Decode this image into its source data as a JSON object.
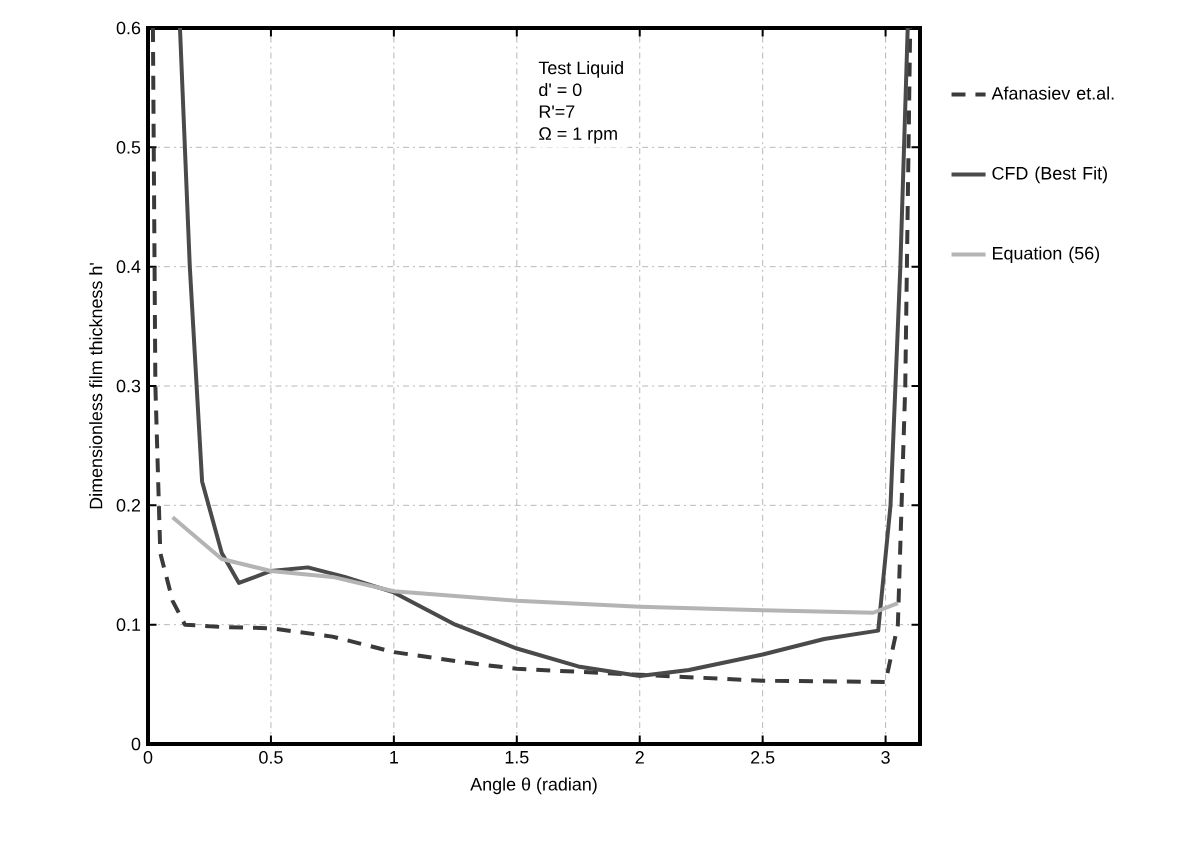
{
  "chart_data": {
    "type": "line",
    "xlabel": "Angle  θ (radian)",
    "ylabel": "Dimensionless film thickness h'",
    "annotations": [
      "Test Liquid",
      "d' = 0",
      "R'=7",
      "Ω = 1 rpm"
    ],
    "xlim": [
      0,
      3.14
    ],
    "ylim": [
      0,
      0.6
    ],
    "xticks": [
      0,
      0.5,
      1,
      1.5,
      2,
      2.5,
      3
    ],
    "yticks": [
      0,
      0.1,
      0.2,
      0.3,
      0.4,
      0.5,
      0.6
    ],
    "grid": true,
    "legend": "right",
    "series": [
      {
        "name": "Afanasiev et.al.",
        "color": "#3a3a3a",
        "line_style": "dashed",
        "x": [
          0.02,
          0.03,
          0.05,
          0.1,
          0.15,
          0.3,
          0.5,
          0.75,
          1.0,
          1.3,
          1.5,
          2.0,
          2.5,
          3.0,
          3.05,
          3.08,
          3.1
        ],
        "values": [
          0.6,
          0.3,
          0.16,
          0.12,
          0.1,
          0.098,
          0.097,
          0.09,
          0.077,
          0.068,
          0.063,
          0.058,
          0.053,
          0.052,
          0.1,
          0.3,
          0.6
        ]
      },
      {
        "name": "CFD (Best Fit)",
        "color": "#4a4a4a",
        "line_style": "solid",
        "x": [
          0.13,
          0.17,
          0.22,
          0.3,
          0.37,
          0.5,
          0.65,
          0.8,
          1.0,
          1.25,
          1.5,
          1.75,
          2.0,
          2.2,
          2.5,
          2.75,
          2.97,
          3.02,
          3.06,
          3.09
        ],
        "values": [
          0.6,
          0.4,
          0.22,
          0.16,
          0.135,
          0.145,
          0.148,
          0.14,
          0.127,
          0.1,
          0.08,
          0.065,
          0.057,
          0.062,
          0.075,
          0.088,
          0.095,
          0.2,
          0.4,
          0.6
        ]
      },
      {
        "name": "Equation (56)",
        "color": "#b4b4b4",
        "line_style": "solid",
        "x": [
          0.1,
          0.3,
          0.5,
          0.75,
          1.0,
          1.5,
          2.0,
          2.5,
          2.95,
          3.05
        ],
        "values": [
          0.19,
          0.155,
          0.145,
          0.14,
          0.128,
          0.12,
          0.115,
          0.112,
          0.11,
          0.118
        ]
      }
    ]
  }
}
